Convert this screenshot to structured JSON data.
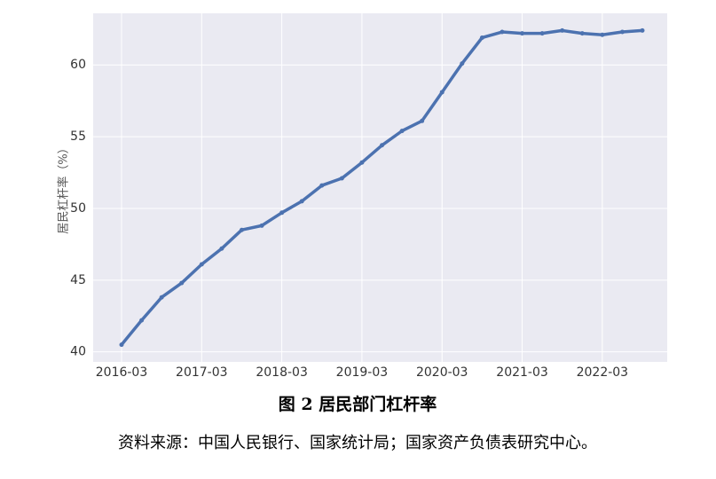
{
  "chart_data": {
    "type": "line",
    "ylabel": "居民杠杆率（%）",
    "categories": [
      "2016-03",
      null,
      null,
      null,
      "2017-03",
      null,
      null,
      null,
      "2018-03",
      null,
      null,
      null,
      "2019-03",
      null,
      null,
      null,
      "2020-03",
      null,
      null,
      null,
      "2021-03",
      null,
      null,
      null,
      "2022-03",
      null,
      null
    ],
    "series": [
      {
        "name": "居民杠杆率",
        "color": "#4c72b0",
        "values": [
          40.5,
          42.2,
          43.8,
          44.8,
          46.1,
          47.2,
          48.5,
          48.8,
          49.7,
          50.5,
          51.6,
          52.1,
          53.2,
          54.4,
          55.4,
          56.1,
          58.1,
          60.1,
          61.9,
          62.3,
          62.2,
          62.2,
          62.4,
          62.2,
          62.1,
          62.3,
          62.4
        ]
      }
    ],
    "ylim": [
      39.3,
      63.6
    ],
    "yticks": [
      40,
      45,
      50,
      55,
      60
    ],
    "grid": true
  },
  "caption": "图 2 居民部门杠杆率",
  "source": "资料来源：中国人民银行、国家统计局；国家资产负债表研究中心。"
}
